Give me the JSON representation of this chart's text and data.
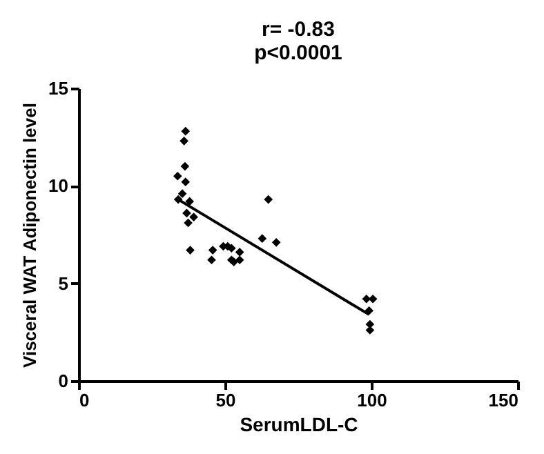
{
  "chart_data": {
    "type": "scatter",
    "title": "r= -0.83",
    "subtitle": "p<0.0001",
    "xlabel": "SerumLDL-C",
    "ylabel": "Visceral WAT Adiponectin level",
    "xlim": [
      0,
      150
    ],
    "ylim": [
      0,
      15
    ],
    "xticks": [
      0,
      50,
      100,
      150
    ],
    "yticks": [
      0,
      5,
      10,
      15
    ],
    "grid": false,
    "series": [
      {
        "color": "#000000",
        "marker": "diamond",
        "x": [
          36.5,
          36,
          36.3,
          33.8,
          36.5,
          35.4,
          34,
          37.9,
          36.9,
          39.3,
          37.4,
          38.1,
          45.8,
          45.4,
          49.4,
          50.9,
          52.2,
          52.2,
          53,
          55,
          55,
          62.7,
          64.8,
          67.5,
          98.3,
          100.5,
          99.2,
          99.5,
          99.5
        ],
        "values": [
          12.8,
          12.3,
          11,
          10.5,
          10.2,
          9.6,
          9.3,
          9.2,
          8.6,
          8.4,
          8.1,
          6.7,
          6.7,
          6.2,
          6.9,
          6.9,
          6.8,
          6.2,
          6.1,
          6.6,
          6.2,
          7.3,
          9.3,
          7.1,
          4.2,
          4.2,
          3.6,
          2.9,
          2.6
        ]
      },
      {
        "type": "line",
        "color": "#000000",
        "x": [
          34,
          99.2
        ],
        "values": [
          9.3,
          3.4
        ]
      }
    ]
  }
}
